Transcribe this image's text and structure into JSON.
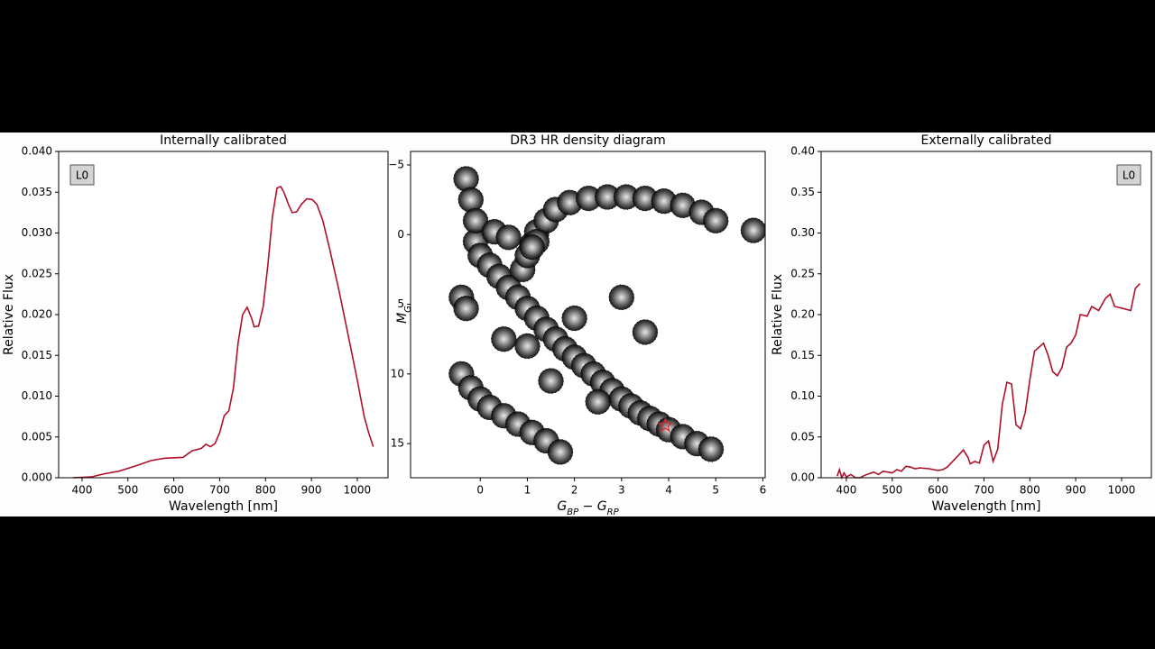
{
  "chart_data": [
    {
      "type": "line",
      "title": "Internally calibrated",
      "xlabel": "Wavelength [nm]",
      "ylabel": "Relative Flux",
      "annotation": "L0",
      "annotation_corner": "top-left",
      "color": "#b0102a",
      "x": [
        380,
        420,
        450,
        480,
        520,
        550,
        580,
        620,
        640,
        660,
        670,
        680,
        690,
        700,
        710,
        720,
        730,
        740,
        750,
        760,
        770,
        775,
        785,
        795,
        805,
        815,
        825,
        833,
        840,
        850,
        858,
        868,
        878,
        890,
        902,
        912,
        925,
        940,
        960,
        980,
        1000,
        1015,
        1025,
        1035
      ],
      "values": [
        0,
        0.0001,
        0.0005,
        0.0008,
        0.0015,
        0.0021,
        0.0024,
        0.0025,
        0.0033,
        0.0036,
        0.0041,
        0.0038,
        0.0042,
        0.0055,
        0.0076,
        0.0082,
        0.011,
        0.0165,
        0.02,
        0.0209,
        0.0195,
        0.0185,
        0.0186,
        0.021,
        0.026,
        0.032,
        0.0355,
        0.0357,
        0.035,
        0.0335,
        0.0325,
        0.0326,
        0.0335,
        0.0342,
        0.0341,
        0.0335,
        0.0315,
        0.028,
        0.023,
        0.0175,
        0.012,
        0.0075,
        0.0055,
        0.0038
      ],
      "xlim": [
        349,
        1067
      ],
      "ylim": [
        0,
        0.04
      ],
      "xticks": [
        400,
        500,
        600,
        700,
        800,
        900,
        1000
      ],
      "yticks": [
        {
          "value": 0,
          "label": "0.000"
        },
        {
          "value": 0.005,
          "label": "0.005"
        },
        {
          "value": 0.01,
          "label": "0.010"
        },
        {
          "value": 0.015,
          "label": "0.015"
        },
        {
          "value": 0.02,
          "label": "0.020"
        },
        {
          "value": 0.025,
          "label": "0.025"
        },
        {
          "value": 0.03,
          "label": "0.030"
        },
        {
          "value": 0.035,
          "label": "0.035"
        },
        {
          "value": 0.04,
          "label": "0.040"
        }
      ]
    },
    {
      "type": "scatter",
      "title": "DR3 HR density diagram",
      "xlabel": [
        "G",
        "BP",
        " − G",
        "RP"
      ],
      "ylabel": [
        "M",
        "G"
      ],
      "color": "#000000",
      "x": [
        -0.1,
        0.0,
        0.2,
        0.4,
        0.6,
        0.8,
        1.0,
        1.2,
        1.4,
        1.6,
        1.8,
        2.0,
        2.2,
        2.4,
        2.6,
        2.8,
        3.0,
        3.2,
        3.4,
        3.6,
        3.8,
        4.0,
        4.3,
        4.6,
        4.9,
        0.9,
        1.0,
        1.1,
        1.2,
        1.4,
        1.6,
        1.9,
        2.3,
        2.7,
        3.1,
        3.5,
        3.9,
        4.3,
        4.7,
        5.0,
        5.8,
        1.2,
        1.1,
        -0.3,
        -0.2,
        -0.1,
        0.3,
        0.6,
        -0.4,
        -0.2,
        0.0,
        0.2,
        0.5,
        0.8,
        1.1,
        1.4,
        1.7,
        -0.4,
        -0.3,
        1.5,
        2.0,
        3.0,
        2.5,
        1.0,
        3.5,
        0.5
      ],
      "values": [
        0.5,
        1.5,
        2.2,
        3.0,
        3.8,
        4.5,
        5.3,
        6.0,
        6.8,
        7.5,
        8.2,
        8.8,
        9.4,
        10.0,
        10.6,
        11.2,
        11.8,
        12.3,
        12.8,
        13.2,
        13.6,
        14.0,
        14.5,
        15.0,
        15.4,
        2.5,
        1.5,
        0.7,
        -0.2,
        -1.0,
        -1.8,
        -2.3,
        -2.6,
        -2.7,
        -2.7,
        -2.6,
        -2.4,
        -2.1,
        -1.6,
        -1.0,
        -0.3,
        0.5,
        0.9,
        -4.0,
        -2.5,
        -1.0,
        -0.2,
        0.2,
        10.0,
        11.0,
        11.8,
        12.4,
        13.0,
        13.6,
        14.2,
        14.8,
        15.6,
        4.5,
        5.3,
        10.5,
        6.0,
        4.5,
        12.0,
        8.0,
        7.0,
        7.5
      ],
      "highlight": {
        "x": 3.93,
        "y": 13.7,
        "color": "#d62728"
      },
      "xlim": [
        -1.48,
        6.05
      ],
      "ylim": [
        17.45,
        -5.97
      ],
      "xticks": [
        0,
        1,
        2,
        3,
        4,
        5,
        6
      ],
      "yticks": [
        {
          "value": -5,
          "label": "−5"
        },
        0,
        5,
        10,
        15
      ]
    },
    {
      "type": "line",
      "title": "Externally calibrated",
      "xlabel": "Wavelength [nm]",
      "ylabel": "Relative Flux",
      "annotation": "L0",
      "annotation_corner": "top-right",
      "color": "#b0102a",
      "x": [
        380,
        385,
        390,
        395,
        400,
        410,
        420,
        430,
        440,
        450,
        460,
        470,
        480,
        490,
        500,
        510,
        520,
        530,
        540,
        550,
        560,
        580,
        600,
        610,
        620,
        640,
        655,
        665,
        670,
        680,
        690,
        700,
        710,
        720,
        730,
        740,
        750,
        760,
        770,
        780,
        790,
        800,
        810,
        830,
        840,
        850,
        860,
        870,
        880,
        890,
        900,
        910,
        925,
        935,
        950,
        965,
        975,
        985,
        1000,
        1020,
        1030,
        1040
      ],
      "values": [
        0.002,
        0.01,
        0.0,
        0.006,
        0.001,
        0.004,
        0,
        0.0,
        0.003,
        0.005,
        0.007,
        0.004,
        0.008,
        0.007,
        0.006,
        0.01,
        0.008,
        0.014,
        0.013,
        0.011,
        0.012,
        0.011,
        0.009,
        0.01,
        0.013,
        0.025,
        0.034,
        0.025,
        0.017,
        0.02,
        0.018,
        0.04,
        0.045,
        0.02,
        0.035,
        0.09,
        0.117,
        0.115,
        0.065,
        0.06,
        0.08,
        0.12,
        0.155,
        0.165,
        0.15,
        0.13,
        0.125,
        0.135,
        0.16,
        0.165,
        0.175,
        0.2,
        0.198,
        0.21,
        0.205,
        0.22,
        0.225,
        0.21,
        0.208,
        0.205,
        0.232,
        0.238
      ],
      "xlim": [
        345,
        1065
      ],
      "ylim": [
        0,
        0.4
      ],
      "xticks": [
        400,
        500,
        600,
        700,
        800,
        900,
        1000
      ],
      "yticks": [
        {
          "value": 0,
          "label": "0.00"
        },
        {
          "value": 0.05,
          "label": "0.05"
        },
        {
          "value": 0.1,
          "label": "0.10"
        },
        {
          "value": 0.15,
          "label": "0.15"
        },
        {
          "value": 0.2,
          "label": "0.20"
        },
        {
          "value": 0.25,
          "label": "0.25"
        },
        {
          "value": 0.3,
          "label": "0.30"
        },
        {
          "value": 0.35,
          "label": "0.35"
        },
        {
          "value": 0.4,
          "label": "0.40"
        }
      ]
    }
  ]
}
